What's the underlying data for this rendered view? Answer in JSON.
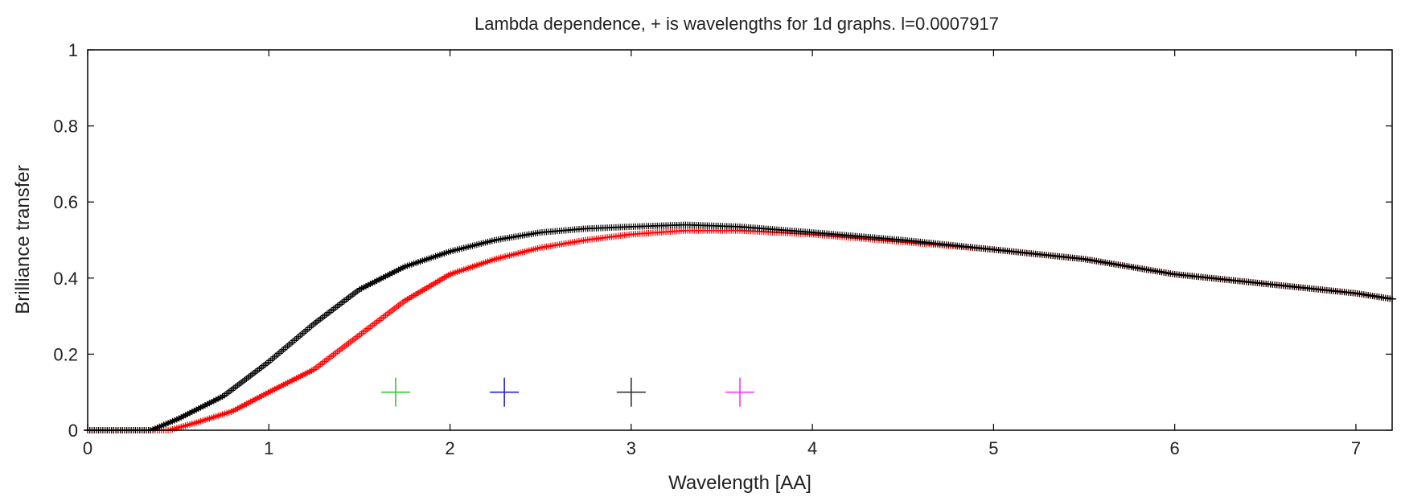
{
  "chart_data": {
    "type": "scatter",
    "title": "Lambda dependence, + is wavelengths for 1d graphs. l=0.0007917",
    "xlabel": "Wavelength [AA]",
    "ylabel": "Brilliance transfer",
    "xlim": [
      0,
      7.2
    ],
    "ylim": [
      0,
      1
    ],
    "x_ticks": [
      "0",
      "1",
      "2",
      "3",
      "4",
      "5",
      "6",
      "7"
    ],
    "y_ticks": [
      "0",
      "0.2",
      "0.4",
      "0.6",
      "0.8",
      "1"
    ],
    "grid": false,
    "legend": "none",
    "marker": "+",
    "series": [
      {
        "color": "#000000",
        "x": [
          0.0,
          0.35,
          0.5,
          0.75,
          1.0,
          1.25,
          1.5,
          1.75,
          2.0,
          2.25,
          2.5,
          2.75,
          3.0,
          3.3,
          3.6,
          4.0,
          4.5,
          5.0,
          5.5,
          6.0,
          6.5,
          7.0,
          7.2
        ],
        "y": [
          0.0,
          0.0,
          0.03,
          0.09,
          0.18,
          0.28,
          0.37,
          0.43,
          0.47,
          0.5,
          0.52,
          0.53,
          0.535,
          0.54,
          0.535,
          0.52,
          0.5,
          0.475,
          0.45,
          0.41,
          0.385,
          0.36,
          0.345
        ]
      },
      {
        "color": "#ff0000",
        "x": [
          0.0,
          0.45,
          0.6,
          0.8,
          1.0,
          1.25,
          1.5,
          1.75,
          2.0,
          2.25,
          2.5,
          2.75,
          3.0,
          3.3,
          3.6,
          4.0,
          4.5,
          5.0,
          5.5,
          6.0,
          6.5,
          7.0,
          7.2
        ],
        "y": [
          0.0,
          0.0,
          0.02,
          0.05,
          0.1,
          0.16,
          0.25,
          0.34,
          0.41,
          0.45,
          0.48,
          0.5,
          0.515,
          0.525,
          0.525,
          0.515,
          0.495,
          0.475,
          0.45,
          0.41,
          0.385,
          0.36,
          0.345
        ]
      }
    ],
    "wavelength_markers": [
      {
        "x": 1.7,
        "y": 0.1,
        "color": "#2ecc2e"
      },
      {
        "x": 2.3,
        "y": 0.1,
        "color": "#2020e0"
      },
      {
        "x": 3.0,
        "y": 0.1,
        "color": "#333333"
      },
      {
        "x": 3.6,
        "y": 0.1,
        "color": "#ff33ff"
      }
    ]
  }
}
